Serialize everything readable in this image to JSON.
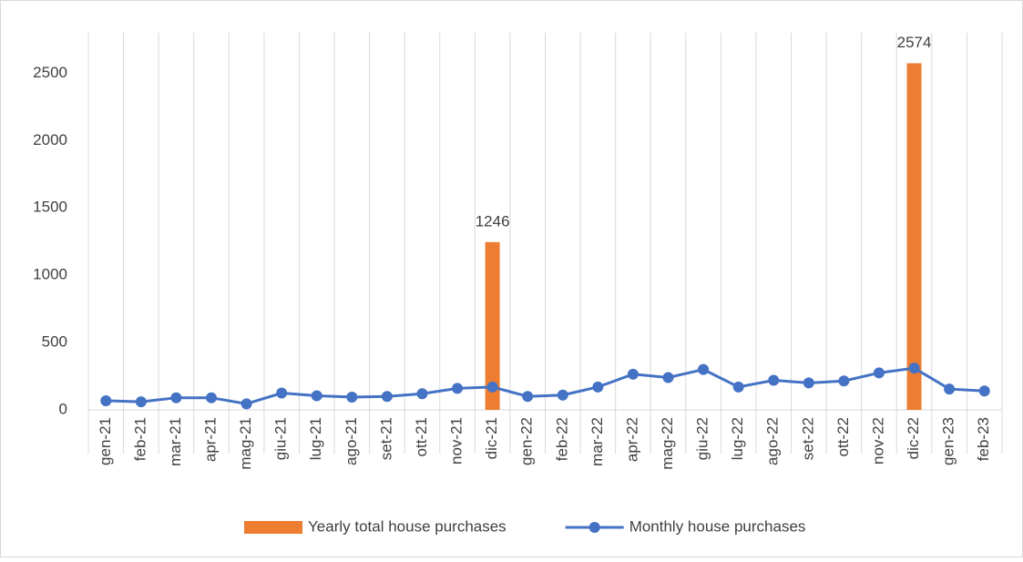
{
  "chart_data": {
    "type": "bar-line",
    "categories": [
      "gen-21",
      "feb-21",
      "mar-21",
      "apr-21",
      "mag-21",
      "giu-21",
      "lug-21",
      "ago-21",
      "set-21",
      "ott-21",
      "nov-21",
      "dic-21",
      "gen-22",
      "feb-22",
      "mar-22",
      "apr-22",
      "mag-22",
      "giu-22",
      "lug-22",
      "ago-22",
      "set-22",
      "ott-22",
      "nov-22",
      "dic-22",
      "gen-23",
      "feb-23"
    ],
    "series": [
      {
        "name": "Yearly total house purchases",
        "type": "bar",
        "color": "#ed7d31",
        "values": [
          null,
          null,
          null,
          null,
          null,
          null,
          null,
          null,
          null,
          null,
          null,
          1246,
          null,
          null,
          null,
          null,
          null,
          null,
          null,
          null,
          null,
          null,
          null,
          2574,
          null,
          null
        ]
      },
      {
        "name": "Monthly house purchases",
        "type": "line",
        "color": "#4472c4",
        "values": [
          68,
          60,
          90,
          90,
          45,
          125,
          105,
          95,
          100,
          120,
          160,
          170,
          100,
          110,
          170,
          265,
          240,
          300,
          170,
          220,
          200,
          215,
          275,
          310,
          155,
          140
        ]
      }
    ],
    "ylim": [
      0,
      2800
    ],
    "yticks": [
      0,
      500,
      1000,
      1500,
      2000,
      2500
    ],
    "grid": "vertical",
    "legend": "bottom"
  }
}
